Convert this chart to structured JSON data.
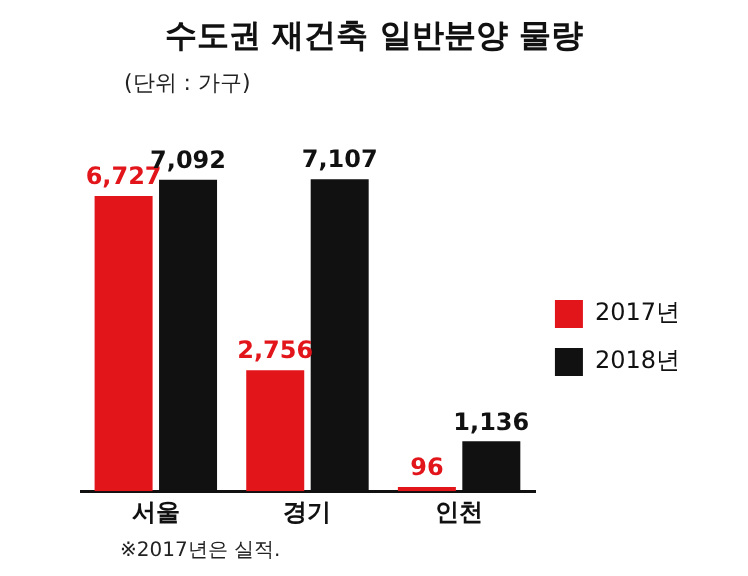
{
  "chart_data": {
    "type": "bar",
    "title": "수도권 재건축 일반분양 물량",
    "subtitle": "(단위 : 가구)",
    "categories": [
      "서울",
      "경기",
      "인천"
    ],
    "series": [
      {
        "name": "2017년",
        "color": "#e2151b",
        "values": [
          6727,
          2756,
          96
        ],
        "value_labels": [
          "6,727",
          "2,756",
          "96"
        ]
      },
      {
        "name": "2018년",
        "color": "#111111",
        "values": [
          7092,
          7107,
          1136
        ],
        "value_labels": [
          "7,092",
          "7,107",
          "1,136"
        ]
      }
    ],
    "legend": "right",
    "grid": false,
    "annotations": [
      "※2017년은 실적."
    ]
  }
}
